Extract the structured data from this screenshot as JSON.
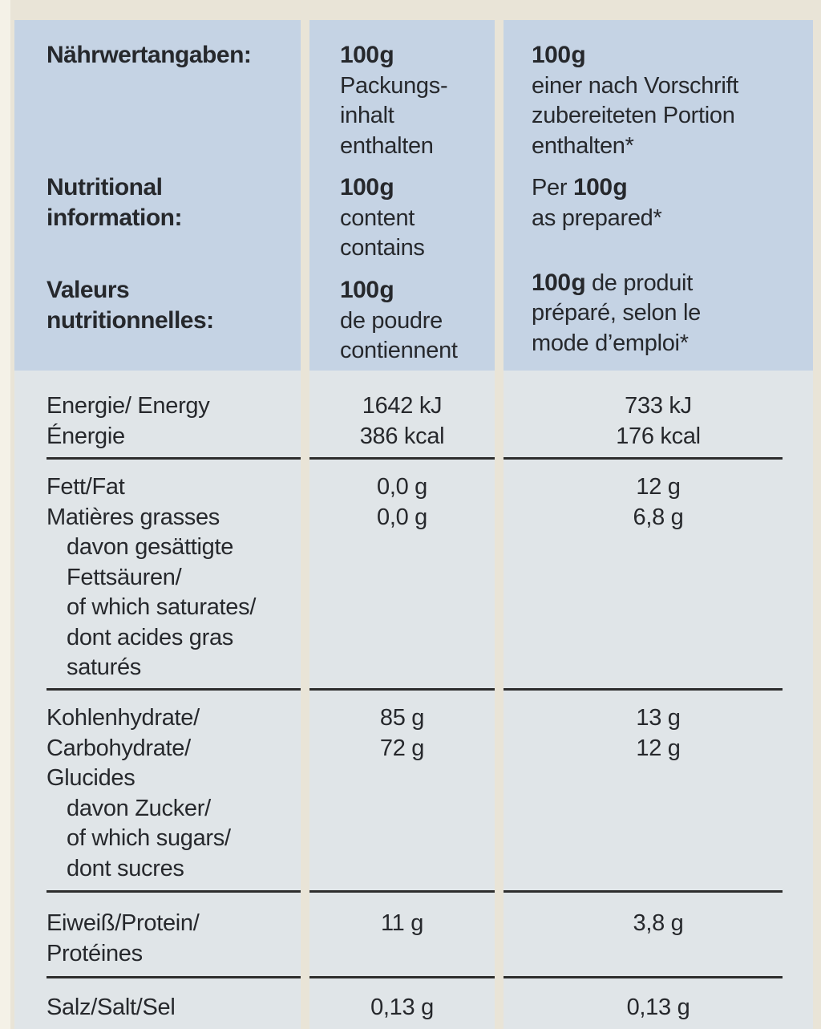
{
  "theme": {
    "cream": "#e9e4d7",
    "edge": "#f4f1e7",
    "header-bg": "#c5d3e4",
    "body-bg": "#e0e5e8",
    "rule": "#2d2d2d",
    "ink": "#26282c"
  },
  "header": {
    "groups": [
      {
        "label": [
          "Nährwertangaben:"
        ],
        "col2": {
          "amount": "100 g",
          "lines": [
            "Packungs-",
            "inhalt",
            "enthalten"
          ]
        },
        "col3": {
          "amount": "100 g",
          "lines": [
            "einer nach Vorschrift",
            "zubereiteten Portion",
            "enthalten*"
          ]
        }
      },
      {
        "label": [
          "Nutritional",
          "information:"
        ],
        "col2": {
          "amount": "100 g",
          "lines": [
            "content",
            "contains"
          ]
        },
        "col3": {
          "prefix": "Per ",
          "amount": "100 g",
          "lines": [
            "as prepared*"
          ]
        }
      },
      {
        "label": [
          "Valeurs",
          "nutritionnelles:"
        ],
        "col2": {
          "amount": "100 g",
          "lines": [
            "de poudre",
            "contiennent"
          ]
        },
        "col3": {
          "amount": "100 g",
          "suffix": " de produit",
          "lines": [
            "préparé, selon le",
            "mode d’emploi*"
          ]
        }
      }
    ]
  },
  "body": {
    "sections": [
      {
        "id": "energy",
        "labels": [
          "Energie/ Energy",
          "Énergie"
        ],
        "col2": [
          "1642 kJ",
          "386 kcal"
        ],
        "col3": [
          "733 kJ",
          "176 kcal"
        ]
      },
      {
        "id": "fat",
        "labels": [
          "Fett/Fat",
          "Matières grasses",
          "davon gesättigte",
          "Fettsäuren/",
          "of which saturates/",
          "dont acides gras",
          "saturés"
        ],
        "col2": [
          "0,0 g",
          "0,0 g"
        ],
        "col3": [
          "12 g",
          "6,8 g"
        ]
      },
      {
        "id": "carbohydrate",
        "labels": [
          "Kohlenhydrate/",
          "Carbohydrate/",
          "Glucides",
          "davon Zucker/",
          "of which sugars/",
          "dont sucres"
        ],
        "col2": [
          "85 g",
          "72 g"
        ],
        "col3": [
          "13 g",
          "12 g"
        ]
      },
      {
        "id": "protein",
        "labels": [
          "Eiweiß/Protein/",
          "Protéines"
        ],
        "col2": [
          "11 g"
        ],
        "col3": [
          "3,8 g"
        ]
      },
      {
        "id": "salt",
        "labels": [
          "Salz/Salt/Sel"
        ],
        "col2": [
          "0,13 g"
        ],
        "col3": [
          "0,13 g"
        ]
      }
    ]
  }
}
